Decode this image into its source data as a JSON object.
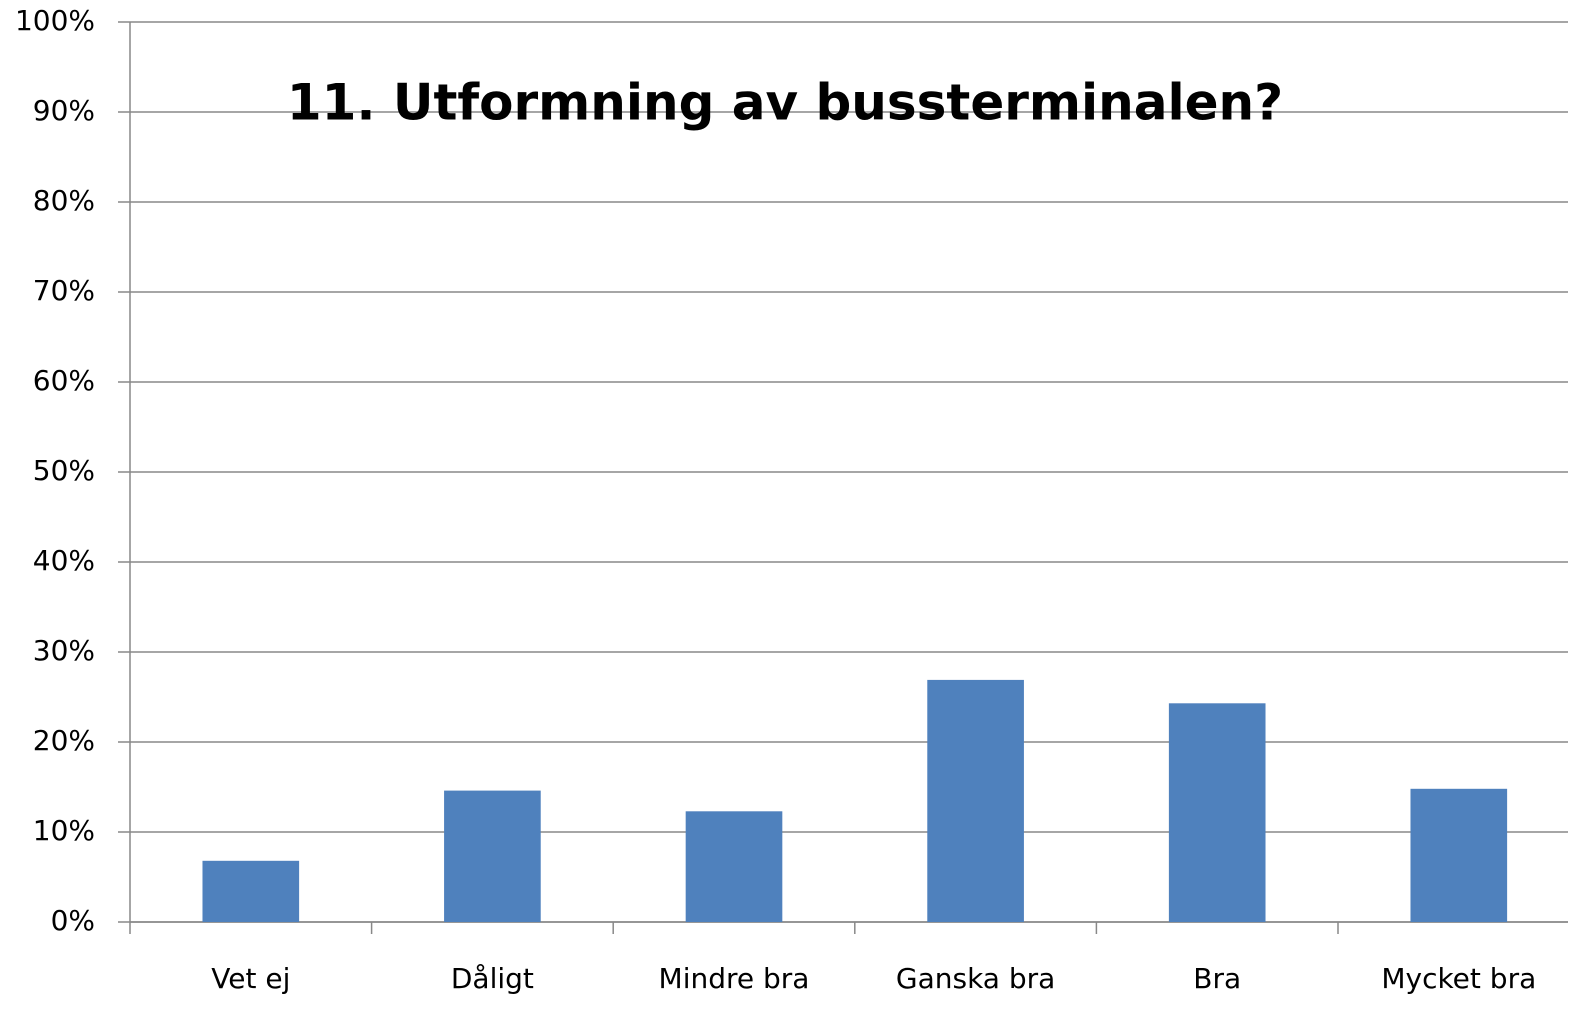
{
  "chart_data": {
    "type": "bar",
    "title": "11. Utformning av bussterminalen?",
    "categories": [
      "Vet ej",
      "Dåligt",
      "Mindre bra",
      "Ganska bra",
      "Bra",
      "Mycket bra"
    ],
    "values": [
      6.8,
      14.6,
      12.3,
      26.9,
      24.3,
      14.8
    ],
    "color": "#4f81bd",
    "ylim": [
      0,
      100
    ],
    "yticks": [
      {
        "value": 0,
        "label": "0%"
      },
      {
        "value": 10,
        "label": "10%"
      },
      {
        "value": 20,
        "label": "20%"
      },
      {
        "value": 30,
        "label": "30%"
      },
      {
        "value": 40,
        "label": "40%"
      },
      {
        "value": 50,
        "label": "50%"
      },
      {
        "value": 60,
        "label": "60%"
      },
      {
        "value": 70,
        "label": "70%"
      },
      {
        "value": 80,
        "label": "80%"
      },
      {
        "value": 90,
        "label": "90%"
      },
      {
        "value": 100,
        "label": "100%"
      }
    ],
    "grid": true
  }
}
